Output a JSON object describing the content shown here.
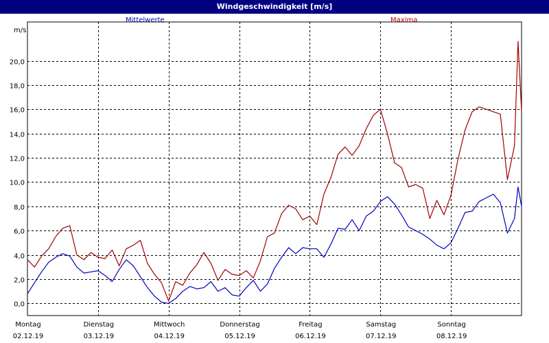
{
  "title": "Windgeschwindigkeit [m/s]",
  "chart_data": {
    "type": "line",
    "title": "Windgeschwindigkeit [m/s]",
    "ylabel": "m/s",
    "xlabel": "",
    "ylim": [
      -1.0,
      23.2
    ],
    "yticks": [
      "0,0",
      "2,0",
      "4,0",
      "6,0",
      "8,0",
      "10,0",
      "12,0",
      "14,0",
      "16,0",
      "18,0",
      "20,0"
    ],
    "ytick_values": [
      0,
      2,
      4,
      6,
      8,
      10,
      12,
      14,
      16,
      18,
      20
    ],
    "x_categories": [
      {
        "day": "Montag",
        "date": "02.12.19"
      },
      {
        "day": "Dienstag",
        "date": "03.12.19"
      },
      {
        "day": "Mittwoch",
        "date": "04.12.19"
      },
      {
        "day": "Donnerstag",
        "date": "05.12.19"
      },
      {
        "day": "Freitag",
        "date": "06.12.19"
      },
      {
        "day": "Samstag",
        "date": "07.12.19"
      },
      {
        "day": "Sonntag",
        "date": "08.12.19"
      }
    ],
    "x_range_days": [
      0,
      7
    ],
    "grid": true,
    "legend_placement": "top",
    "series": [
      {
        "name": "Mittelwerte",
        "color": "#0000c0",
        "x": [
          0,
          0.1,
          0.2,
          0.3,
          0.4,
          0.5,
          0.6,
          0.7,
          0.8,
          0.9,
          1.0,
          1.1,
          1.2,
          1.3,
          1.4,
          1.5,
          1.6,
          1.7,
          1.8,
          1.9,
          2.0,
          2.1,
          2.2,
          2.3,
          2.4,
          2.5,
          2.6,
          2.7,
          2.8,
          2.9,
          3.0,
          3.1,
          3.2,
          3.3,
          3.4,
          3.5,
          3.6,
          3.7,
          3.8,
          3.9,
          4.0,
          4.1,
          4.2,
          4.3,
          4.4,
          4.5,
          4.6,
          4.7,
          4.8,
          4.9,
          5.0,
          5.1,
          5.2,
          5.3,
          5.4,
          5.5,
          5.6,
          5.7,
          5.8,
          5.9,
          6.0,
          6.1,
          6.2,
          6.3,
          6.4,
          6.5,
          6.6,
          6.7,
          6.8,
          6.9,
          6.95,
          7.0
        ],
        "values": [
          0.8,
          1.7,
          2.6,
          3.4,
          3.8,
          4.1,
          3.9,
          3.0,
          2.5,
          2.6,
          2.7,
          2.3,
          1.8,
          2.8,
          3.6,
          3.1,
          2.2,
          1.3,
          0.6,
          0.1,
          0.0,
          0.4,
          1.0,
          1.4,
          1.2,
          1.3,
          1.8,
          1.0,
          1.3,
          0.7,
          0.6,
          1.3,
          1.9,
          1.0,
          1.6,
          2.9,
          3.8,
          4.6,
          4.1,
          4.6,
          4.5,
          4.5,
          3.8,
          4.9,
          6.2,
          6.1,
          6.9,
          6.0,
          7.2,
          7.6,
          8.4,
          8.8,
          8.2,
          7.3,
          6.3,
          6.0,
          5.7,
          5.3,
          4.8,
          4.5,
          5.0,
          6.2,
          7.5,
          7.6,
          8.4,
          8.7,
          9.0,
          8.3,
          5.8,
          7.0,
          9.6,
          8.0
        ]
      },
      {
        "name": "Maxima",
        "color": "#a00000",
        "x": [
          0,
          0.1,
          0.2,
          0.3,
          0.4,
          0.5,
          0.6,
          0.7,
          0.8,
          0.9,
          1.0,
          1.1,
          1.2,
          1.3,
          1.4,
          1.5,
          1.6,
          1.7,
          1.8,
          1.9,
          2.0,
          2.1,
          2.2,
          2.3,
          2.4,
          2.5,
          2.6,
          2.7,
          2.8,
          2.9,
          3.0,
          3.1,
          3.2,
          3.3,
          3.4,
          3.5,
          3.6,
          3.7,
          3.8,
          3.9,
          4.0,
          4.1,
          4.2,
          4.3,
          4.4,
          4.5,
          4.6,
          4.7,
          4.8,
          4.9,
          5.0,
          5.1,
          5.2,
          5.3,
          5.4,
          5.5,
          5.6,
          5.7,
          5.8,
          5.9,
          6.0,
          6.1,
          6.2,
          6.3,
          6.4,
          6.5,
          6.6,
          6.7,
          6.8,
          6.9,
          6.95,
          7.0
        ],
        "values": [
          3.6,
          3.0,
          3.9,
          4.5,
          5.5,
          6.2,
          6.4,
          4.0,
          3.6,
          4.2,
          3.8,
          3.7,
          4.4,
          3.1,
          4.5,
          4.8,
          5.2,
          3.3,
          2.4,
          1.7,
          0.2,
          1.8,
          1.5,
          2.5,
          3.2,
          4.2,
          3.3,
          1.9,
          2.8,
          2.4,
          2.3,
          2.7,
          2.1,
          3.5,
          5.5,
          5.8,
          7.4,
          8.1,
          7.8,
          6.9,
          7.2,
          6.5,
          9.0,
          10.4,
          12.3,
          12.9,
          12.2,
          13.0,
          14.4,
          15.5,
          16.0,
          14.0,
          11.6,
          11.2,
          9.6,
          9.8,
          9.5,
          7.0,
          8.5,
          7.3,
          8.9,
          11.9,
          14.3,
          15.8,
          16.2,
          16.0,
          15.8,
          15.6,
          10.2,
          13.0,
          21.6,
          15.8
        ]
      }
    ]
  }
}
